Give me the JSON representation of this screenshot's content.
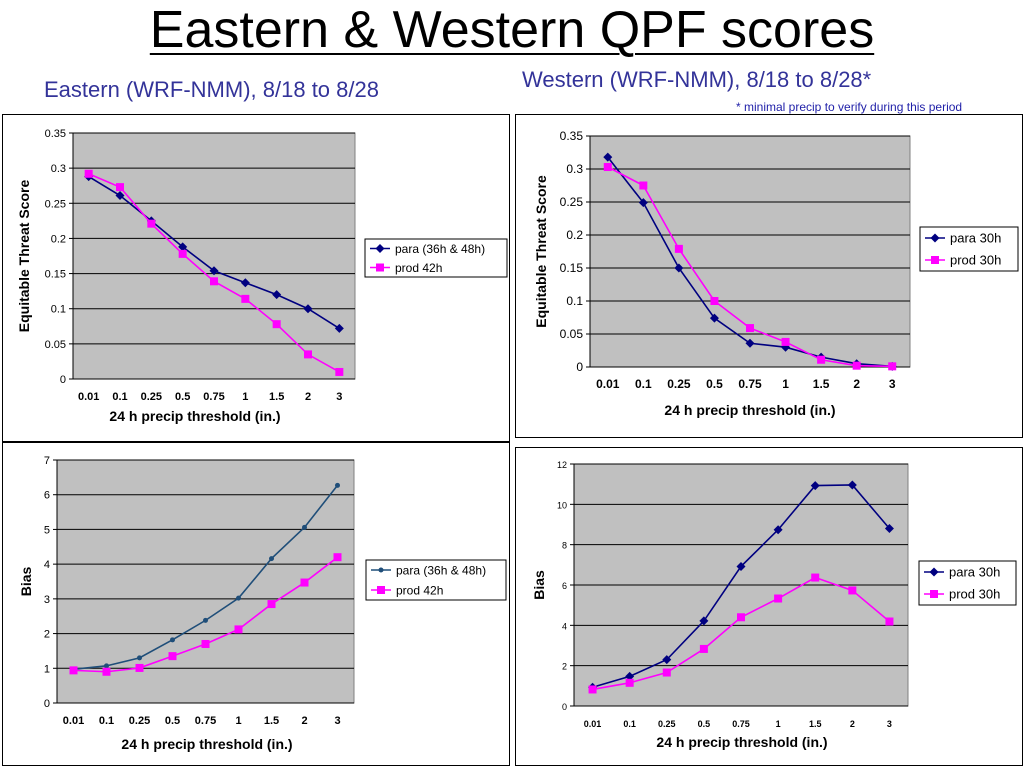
{
  "title": "Eastern & Western QPF scores",
  "east_heading": "Eastern (WRF-NMM), 8/18 to 8/28",
  "west_heading": "Western (WRF-NMM), 8/18 to 8/28*",
  "west_note": "* minimal precip to verify during this period",
  "colors": {
    "para": "#000080",
    "para_east_bias": "#1f4e79",
    "prod": "#ff00ff",
    "plot_bg": "#c0c0c0"
  },
  "chart_data": [
    {
      "id": "east-ets",
      "type": "line",
      "categories": [
        "0.01",
        "0.1",
        "0.25",
        "0.5",
        "0.75",
        "1",
        "1.5",
        "2",
        "3"
      ],
      "ylabel": "Equitable Threat Score",
      "xlabel": "24 h precip threshold (in.)",
      "ylim": [
        0,
        0.35
      ],
      "yticks": [
        "0",
        "0.05",
        "0.1",
        "0.15",
        "0.2",
        "0.25",
        "0.3",
        "0.35"
      ],
      "legend_position": "right",
      "series": [
        {
          "name": "para (36h & 48h)",
          "values": [
            0.288,
            0.261,
            0.225,
            0.188,
            0.154,
            0.137,
            0.12,
            0.1,
            0.072
          ]
        },
        {
          "name": "prod 42h",
          "values": [
            0.292,
            0.273,
            0.221,
            0.178,
            0.139,
            0.114,
            0.078,
            0.035,
            0.01
          ]
        }
      ]
    },
    {
      "id": "west-ets",
      "type": "line",
      "categories": [
        "0.01",
        "0.1",
        "0.25",
        "0.5",
        "0.75",
        "1",
        "1.5",
        "2",
        "3"
      ],
      "ylabel": "Equitable Threat Score",
      "xlabel": "24 h precip threshold (in.)",
      "ylim": [
        0,
        0.35
      ],
      "yticks": [
        "0",
        "0.05",
        "0.1",
        "0.15",
        "0.2",
        "0.25",
        "0.3",
        "0.35"
      ],
      "legend_position": "right",
      "series": [
        {
          "name": "para 30h",
          "values": [
            0.318,
            0.249,
            0.15,
            0.074,
            0.036,
            0.03,
            0.015,
            0.005,
            0.001
          ]
        },
        {
          "name": "prod 30h",
          "values": [
            0.303,
            0.275,
            0.179,
            0.1,
            0.059,
            0.038,
            0.011,
            0.002,
            0.001
          ]
        }
      ]
    },
    {
      "id": "east-bias",
      "type": "line",
      "categories": [
        "0.01",
        "0.1",
        "0.25",
        "0.5",
        "0.75",
        "1",
        "1.5",
        "2",
        "3"
      ],
      "ylabel": "Bias",
      "xlabel": "24 h precip threshold (in.)",
      "ylim": [
        0,
        7
      ],
      "yticks": [
        "0",
        "1",
        "2",
        "3",
        "4",
        "5",
        "6",
        "7"
      ],
      "legend_position": "right",
      "series": [
        {
          "name": "para (36h & 48h)",
          "values": [
            0.97,
            1.07,
            1.3,
            1.82,
            2.38,
            3.02,
            4.16,
            5.06,
            6.27
          ]
        },
        {
          "name": "prod 42h",
          "values": [
            0.94,
            0.9,
            1.01,
            1.35,
            1.7,
            2.12,
            2.85,
            3.47,
            4.2
          ]
        }
      ]
    },
    {
      "id": "west-bias",
      "type": "line",
      "categories": [
        "0.01",
        "0.1",
        "0.25",
        "0.5",
        "0.75",
        "1",
        "1.5",
        "2",
        "3"
      ],
      "ylabel": "Bias",
      "xlabel": "24 h precip threshold (in.)",
      "ylim": [
        0,
        12
      ],
      "yticks": [
        "0",
        "2",
        "4",
        "6",
        "8",
        "10",
        "12"
      ],
      "legend_position": "right",
      "series": [
        {
          "name": "para 30h",
          "values": [
            0.93,
            1.47,
            2.3,
            4.22,
            6.92,
            8.74,
            10.93,
            10.96,
            8.8
          ]
        },
        {
          "name": "prod 30h",
          "values": [
            0.82,
            1.15,
            1.66,
            2.83,
            4.4,
            5.33,
            6.37,
            5.73,
            4.19
          ]
        }
      ]
    }
  ]
}
